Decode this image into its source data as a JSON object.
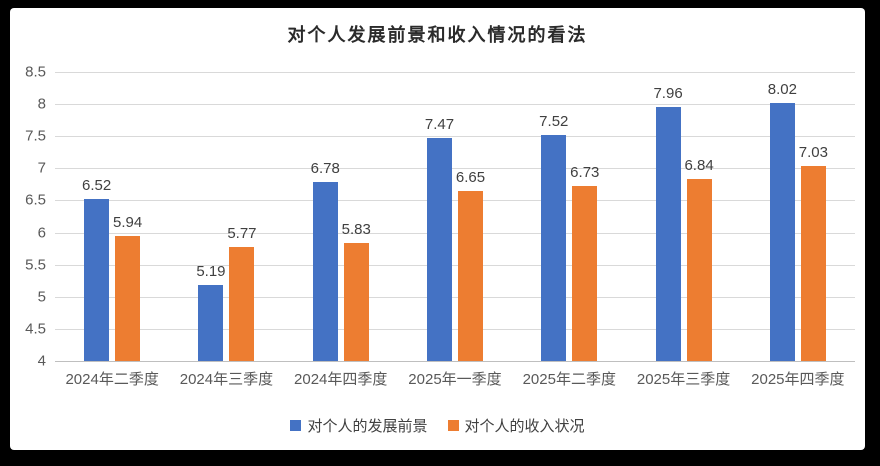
{
  "frame": {
    "border_color": "#000000",
    "background": "#ffffff"
  },
  "chart_data": {
    "type": "bar",
    "title": "对个人发展前景和收入情况的看法",
    "categories": [
      "2024年二季度",
      "2024年三季度",
      "2024年四季度",
      "2025年一季度",
      "2025年二季度",
      "2025年三季度",
      "2025年四季度"
    ],
    "series": [
      {
        "name": "对个人的发展前景",
        "color": "#4472C4",
        "values": [
          6.52,
          5.19,
          6.78,
          7.47,
          7.52,
          7.96,
          8.02
        ]
      },
      {
        "name": "对个人的收入状况",
        "color": "#ED7D31",
        "values": [
          5.94,
          5.77,
          5.83,
          6.65,
          6.73,
          6.84,
          7.03
        ]
      }
    ],
    "xlabel": "",
    "ylabel": "",
    "ylim": [
      4,
      8.5
    ],
    "ytick_step": 0.5,
    "grid": true,
    "legend_position": "bottom",
    "value_label_decimals": 2,
    "colors": {
      "gridline": "#d9d9d9",
      "axis_line": "#bfbfbf",
      "tick_text": "#595959",
      "value_text": "#404040",
      "title_text": "#2b2b2b"
    }
  }
}
